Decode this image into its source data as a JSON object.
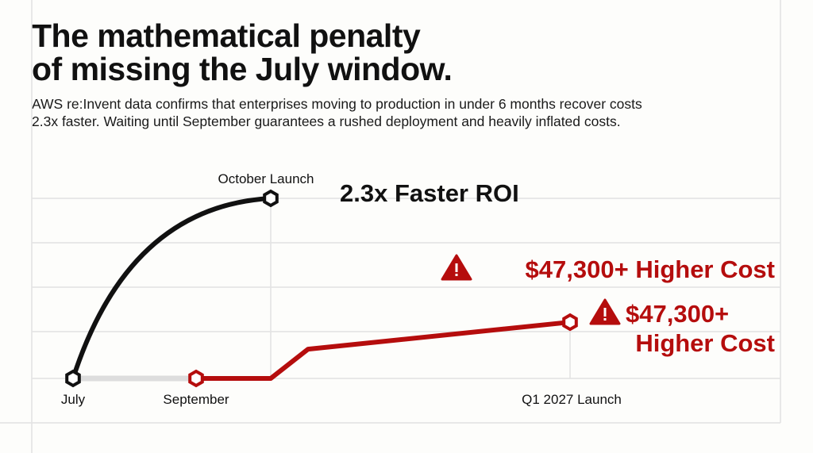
{
  "header": {
    "title_line1": "The mathematical penalty",
    "title_line2": "of missing the July window.",
    "subtitle": "AWS re:Invent data confirms that enterprises moving to production in under 6 months recover costs 2.3x faster. Waiting until September guarantees a rushed deployment and heavily inflated costs."
  },
  "colors": {
    "fast_path": "#111111",
    "delayed_path": "#b50d0d",
    "wait_segment": "#dddddd",
    "grid": "#e2e2e2"
  },
  "chart_data": {
    "type": "line",
    "title": "",
    "xlabel": "",
    "ylabel": "",
    "grid": true,
    "point_labels": {
      "july": "July",
      "september": "September",
      "october": "October Launch",
      "q1": "Q1 2027 Launch"
    },
    "annotations": {
      "roi": "2.3x Faster ROI",
      "cost_top": "$47,300+ Higher Cost",
      "cost_line1": "$47,300+",
      "cost_line2": "Higher Cost",
      "warning_icon": "warning-triangle-icon"
    },
    "series": [
      {
        "key": "fast",
        "points": [
          {
            "x": "July",
            "y": 0
          },
          {
            "x": "October",
            "y": 4
          }
        ]
      },
      {
        "key": "wait",
        "points": [
          {
            "x": "July",
            "y": 0
          },
          {
            "x": "September",
            "y": 0
          }
        ]
      },
      {
        "key": "delayed",
        "points": [
          {
            "x": "September",
            "y": 0
          },
          {
            "x": "October",
            "y": 0
          },
          {
            "x": "November",
            "y": 0.65
          },
          {
            "x": "Q1 2027",
            "y": 1.25
          }
        ]
      }
    ]
  }
}
